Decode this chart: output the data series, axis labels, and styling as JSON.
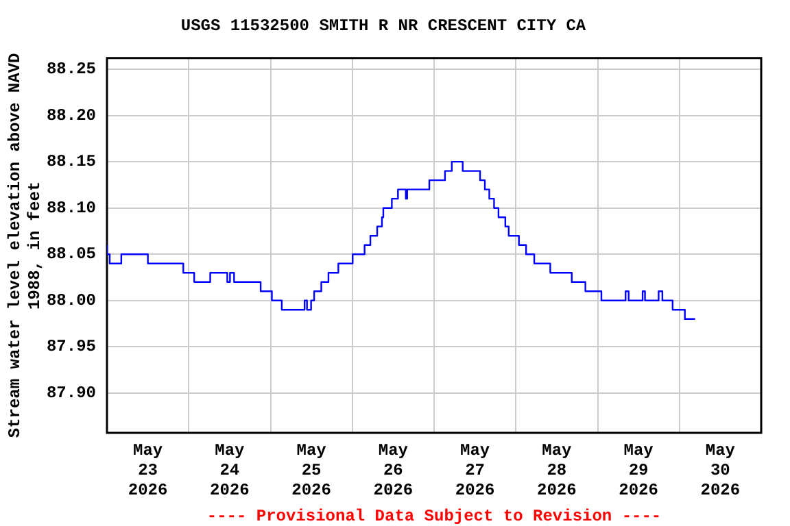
{
  "chart_data": {
    "type": "step",
    "title": "USGS 11532500 SMITH R NR CRESCENT CITY CA",
    "ylabel": "Stream water level elevation above NAVD 1988, in feet",
    "annotations": [
      "---- Provisional Data Subject to Revision ----"
    ],
    "x": [
      "2026-05-23T00:00",
      "2026-05-23T00:48",
      "2026-05-23T04:12",
      "2026-05-23T12:00",
      "2026-05-23T22:24",
      "2026-05-24T01:36",
      "2026-05-24T06:18",
      "2026-05-24T11:18",
      "2026-05-24T12:06",
      "2026-05-24T13:18",
      "2026-05-24T21:06",
      "2026-05-25T00:24",
      "2026-05-25T03:18",
      "2026-05-25T10:00",
      "2026-05-25T10:42",
      "2026-05-25T11:54",
      "2026-05-25T12:48",
      "2026-05-25T14:54",
      "2026-05-25T17:00",
      "2026-05-25T19:54",
      "2026-05-26T00:06",
      "2026-05-26T03:36",
      "2026-05-26T05:18",
      "2026-05-26T07:18",
      "2026-05-26T08:42",
      "2026-05-26T09:06",
      "2026-05-26T11:36",
      "2026-05-26T13:24",
      "2026-05-26T15:42",
      "2026-05-26T16:06",
      "2026-05-26T22:36",
      "2026-05-27T03:12",
      "2026-05-27T05:12",
      "2026-05-27T08:24",
      "2026-05-27T13:30",
      "2026-05-27T14:54",
      "2026-05-27T16:12",
      "2026-05-27T17:36",
      "2026-05-27T18:54",
      "2026-05-27T20:54",
      "2026-05-27T21:54",
      "2026-05-28T00:54",
      "2026-05-28T03:00",
      "2026-05-28T05:24",
      "2026-05-28T10:06",
      "2026-05-28T16:24",
      "2026-05-28T20:24",
      "2026-05-29T01:06",
      "2026-05-29T08:12",
      "2026-05-29T09:06",
      "2026-05-29T13:12",
      "2026-05-29T13:54",
      "2026-05-29T17:54",
      "2026-05-29T19:00",
      "2026-05-29T22:00",
      "2026-05-30T01:36",
      "2026-05-30T02:18",
      "2026-05-30T04:36"
    ],
    "series": [
      {
        "color": "#0000ff",
        "values": [
          88.06,
          88.05,
          88.04,
          88.05,
          88.04,
          88.03,
          88.02,
          88.03,
          88.02,
          88.03,
          88.02,
          88.01,
          88.0,
          87.99,
          88.0,
          87.99,
          88.0,
          88.01,
          88.02,
          88.03,
          88.04,
          88.05,
          88.06,
          88.07,
          88.08,
          88.09,
          88.1,
          88.11,
          88.12,
          88.11,
          88.12,
          88.13,
          88.14,
          88.15,
          88.14,
          88.13,
          88.12,
          88.11,
          88.1,
          88.09,
          88.08,
          88.07,
          88.06,
          88.05,
          88.04,
          88.03,
          88.02,
          88.01,
          88.0,
          88.01,
          88.0,
          88.01,
          88.0,
          88.01,
          88.0,
          87.99,
          87.98,
          87.98
        ]
      }
    ],
    "xlim": [
      "2026-05-23T00:00",
      "2026-05-31T00:00"
    ],
    "xticks": [
      {
        "value": "2026-05-23T12:00",
        "label": "May\n23\n2026"
      },
      {
        "value": "2026-05-24T00:00",
        "label": null
      },
      {
        "value": "2026-05-24T12:00",
        "label": "May\n24\n2026"
      },
      {
        "value": "2026-05-25T00:00",
        "label": null
      },
      {
        "value": "2026-05-25T12:00",
        "label": "May\n25\n2026"
      },
      {
        "value": "2026-05-26T00:00",
        "label": null
      },
      {
        "value": "2026-05-26T12:00",
        "label": "May\n26\n2026"
      },
      {
        "value": "2026-05-27T00:00",
        "label": null
      },
      {
        "value": "2026-05-27T12:00",
        "label": "May\n27\n2026"
      },
      {
        "value": "2026-05-28T00:00",
        "label": null
      },
      {
        "value": "2026-05-28T12:00",
        "label": "May\n28\n2026"
      },
      {
        "value": "2026-05-29T00:00",
        "label": null
      },
      {
        "value": "2026-05-29T12:00",
        "label": "May\n29\n2026"
      },
      {
        "value": "2026-05-30T00:00",
        "label": null
      },
      {
        "value": "2026-05-30T12:00",
        "label": "May\n30\n2026"
      }
    ],
    "ylim": [
      87.857,
      88.262
    ],
    "yticks": [
      {
        "value": 87.9,
        "label": "87.90"
      },
      {
        "value": 87.95,
        "label": "87.95"
      },
      {
        "value": 88.0,
        "label": "88.00"
      },
      {
        "value": 88.05,
        "label": "88.05"
      },
      {
        "value": 88.1,
        "label": "88.10"
      },
      {
        "value": 88.15,
        "label": "88.15"
      },
      {
        "value": 88.2,
        "label": "88.20"
      },
      {
        "value": 88.25,
        "label": "88.25"
      }
    ],
    "grid": true
  }
}
